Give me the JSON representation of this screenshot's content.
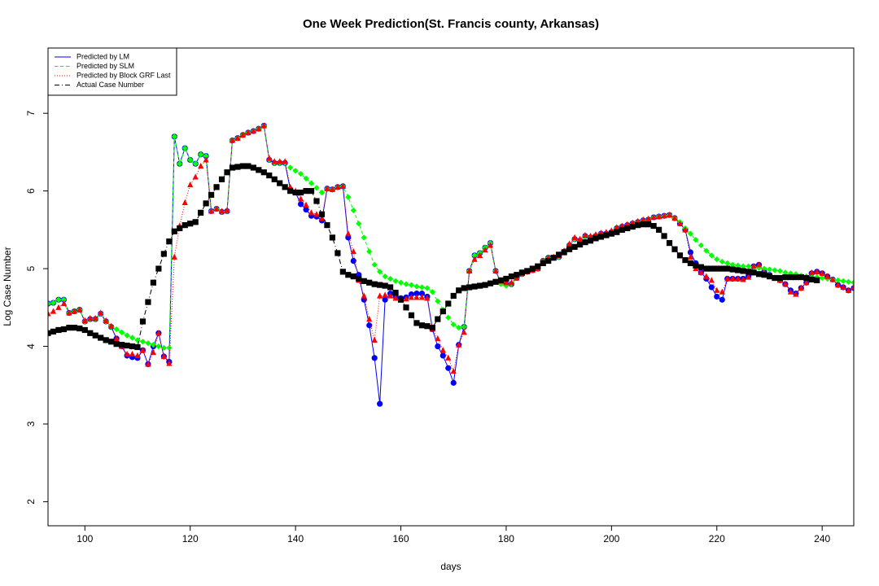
{
  "chart_data": {
    "type": "line",
    "title": "One Week Prediction(St. Francis county, Arkansas)",
    "x_label": "days",
    "y_label": "Log Case Number",
    "xlim": [
      93,
      246
    ],
    "ylim": [
      1.69,
      7.84
    ],
    "xticks": [
      100,
      120,
      140,
      160,
      180,
      200,
      220,
      240
    ],
    "yticks": [
      2,
      3,
      4,
      5,
      6,
      7
    ],
    "legend": "upper left",
    "x": [
      93,
      94,
      95,
      96,
      97,
      98,
      99,
      100,
      101,
      102,
      103,
      104,
      105,
      106,
      107,
      108,
      109,
      110,
      111,
      112,
      113,
      114,
      115,
      116,
      117,
      118,
      119,
      120,
      121,
      122,
      123,
      124,
      125,
      126,
      127,
      128,
      129,
      130,
      131,
      132,
      133,
      134,
      135,
      136,
      137,
      138,
      139,
      140,
      141,
      142,
      143,
      144,
      145,
      146,
      147,
      148,
      149,
      150,
      151,
      152,
      153,
      154,
      155,
      156,
      157,
      158,
      159,
      160,
      161,
      162,
      163,
      164,
      165,
      166,
      167,
      168,
      169,
      170,
      171,
      172,
      173,
      174,
      175,
      176,
      177,
      178,
      179,
      180,
      181,
      182,
      183,
      184,
      185,
      186,
      187,
      188,
      189,
      190,
      191,
      192,
      193,
      194,
      195,
      196,
      197,
      198,
      199,
      200,
      201,
      202,
      203,
      204,
      205,
      206,
      207,
      208,
      209,
      210,
      211,
      212,
      213,
      214,
      215,
      216,
      217,
      218,
      219,
      220,
      221,
      222,
      223,
      224,
      225,
      226,
      227,
      228,
      229,
      230,
      231,
      232,
      233,
      234,
      235,
      236,
      237,
      238,
      239,
      240,
      241,
      242,
      243,
      244,
      245,
      246
    ],
    "series": [
      {
        "name": "Predicted by LM",
        "color": "#0000ff",
        "line_style": "solid",
        "marker": "circle",
        "values": [
          4.55,
          4.56,
          4.6,
          4.6,
          4.43,
          4.45,
          4.47,
          4.32,
          4.35,
          4.35,
          4.42,
          4.32,
          4.25,
          4.1,
          4.0,
          3.88,
          3.86,
          3.85,
          3.95,
          3.77,
          4.0,
          4.17,
          3.87,
          3.8,
          6.7,
          6.35,
          6.55,
          6.4,
          6.35,
          6.47,
          6.45,
          5.74,
          5.77,
          5.73,
          5.74,
          6.65,
          6.68,
          6.72,
          6.75,
          6.77,
          6.8,
          6.84,
          6.4,
          6.36,
          6.36,
          6.36,
          6.02,
          5.98,
          5.83,
          5.76,
          5.68,
          5.67,
          5.62,
          6.03,
          6.02,
          6.05,
          6.06,
          5.4,
          5.1,
          4.92,
          4.6,
          4.27,
          3.85,
          3.26,
          4.6,
          4.68,
          4.64,
          4.62,
          4.63,
          4.67,
          4.68,
          4.68,
          4.64,
          4.22,
          4.0,
          3.88,
          3.72,
          3.53,
          4.02,
          4.25,
          4.97,
          5.17,
          5.2,
          5.27,
          5.33,
          4.97,
          4.82,
          4.8,
          4.8,
          4.88,
          4.93,
          4.96,
          4.98,
          5.0,
          5.1,
          5.14,
          5.14,
          5.15,
          5.22,
          5.3,
          5.38,
          5.36,
          5.42,
          5.4,
          5.42,
          5.45,
          5.45,
          5.47,
          5.52,
          5.54,
          5.56,
          5.58,
          5.6,
          5.62,
          5.63,
          5.66,
          5.67,
          5.68,
          5.69,
          5.65,
          5.58,
          5.5,
          5.21,
          5.07,
          4.95,
          4.87,
          4.76,
          4.64,
          4.6,
          4.87,
          4.87,
          4.87,
          4.87,
          4.9,
          5.03,
          5.05,
          4.96,
          4.92,
          4.88,
          4.85,
          4.8,
          4.72,
          4.68,
          4.75,
          4.82,
          4.94,
          4.96,
          4.94,
          4.9,
          4.86,
          4.79,
          4.76,
          4.72,
          4.75
        ]
      },
      {
        "name": "Predicted by SLM",
        "color": "#00ff00",
        "line_style": "dashed",
        "marker": "diamond",
        "values": [
          4.55,
          4.56,
          4.6,
          4.6,
          4.43,
          4.45,
          4.47,
          4.32,
          4.35,
          4.35,
          4.42,
          4.32,
          4.25,
          4.22,
          4.18,
          4.14,
          4.11,
          4.08,
          4.06,
          4.04,
          4.02,
          4.0,
          3.98,
          3.98,
          6.7,
          6.35,
          6.55,
          6.4,
          6.35,
          6.47,
          6.45,
          5.74,
          5.77,
          5.73,
          5.74,
          6.65,
          6.68,
          6.72,
          6.75,
          6.77,
          6.8,
          6.84,
          6.4,
          6.36,
          6.36,
          6.36,
          6.3,
          6.26,
          6.22,
          6.16,
          6.1,
          6.04,
          5.98,
          6.03,
          6.02,
          6.05,
          6.06,
          5.92,
          5.75,
          5.58,
          5.4,
          5.22,
          5.05,
          4.96,
          4.9,
          4.87,
          4.84,
          4.82,
          4.8,
          4.79,
          4.77,
          4.76,
          4.75,
          4.7,
          4.58,
          4.47,
          4.37,
          4.28,
          4.24,
          4.25,
          4.97,
          5.17,
          5.2,
          5.27,
          5.33,
          4.97,
          4.8,
          4.78,
          4.8,
          4.88,
          4.93,
          4.96,
          4.98,
          5.0,
          5.1,
          5.14,
          5.14,
          5.15,
          5.22,
          5.3,
          5.38,
          5.36,
          5.42,
          5.4,
          5.42,
          5.45,
          5.45,
          5.47,
          5.52,
          5.54,
          5.56,
          5.58,
          5.6,
          5.62,
          5.63,
          5.66,
          5.67,
          5.68,
          5.69,
          5.65,
          5.6,
          5.52,
          5.45,
          5.37,
          5.3,
          5.23,
          5.17,
          5.12,
          5.09,
          5.07,
          5.05,
          5.04,
          5.03,
          5.03,
          5.02,
          5.01,
          5.0,
          4.99,
          4.98,
          4.97,
          4.95,
          4.94,
          4.93,
          4.91,
          4.9,
          4.89,
          4.89,
          4.88,
          4.87,
          4.86,
          4.85,
          4.84,
          4.83,
          4.82
        ]
      },
      {
        "name": "Predicted by Block GRF Last",
        "color": "#ff0000",
        "line_style": "dotted",
        "marker": "triangle",
        "values": [
          4.42,
          4.45,
          4.5,
          4.55,
          4.43,
          4.45,
          4.47,
          4.33,
          4.36,
          4.36,
          4.43,
          4.33,
          4.26,
          4.1,
          4.0,
          3.9,
          3.9,
          3.88,
          3.95,
          3.77,
          3.92,
          4.17,
          3.87,
          3.78,
          5.15,
          5.55,
          5.85,
          6.08,
          6.18,
          6.32,
          6.4,
          5.74,
          5.77,
          5.74,
          5.75,
          6.65,
          6.68,
          6.72,
          6.75,
          6.77,
          6.8,
          6.84,
          6.42,
          6.38,
          6.38,
          6.38,
          6.05,
          6.0,
          5.9,
          5.82,
          5.72,
          5.7,
          5.65,
          6.03,
          6.02,
          6.05,
          6.06,
          5.45,
          5.22,
          4.85,
          4.65,
          4.35,
          4.08,
          4.65,
          4.66,
          4.65,
          4.62,
          4.6,
          4.61,
          4.63,
          4.63,
          4.63,
          4.62,
          4.22,
          4.1,
          3.95,
          3.85,
          3.68,
          4.02,
          4.18,
          4.97,
          5.12,
          5.17,
          5.24,
          5.3,
          4.97,
          4.84,
          4.82,
          4.82,
          4.88,
          4.94,
          4.96,
          4.98,
          5.0,
          5.1,
          5.14,
          5.15,
          5.17,
          5.23,
          5.32,
          5.4,
          5.38,
          5.43,
          5.42,
          5.44,
          5.46,
          5.47,
          5.49,
          5.53,
          5.55,
          5.57,
          5.59,
          5.61,
          5.63,
          5.64,
          5.66,
          5.67,
          5.68,
          5.69,
          5.65,
          5.58,
          5.5,
          5.15,
          5.0,
          4.95,
          4.9,
          4.85,
          4.72,
          4.7,
          4.87,
          4.87,
          4.87,
          4.86,
          4.89,
          5.03,
          5.05,
          4.95,
          4.92,
          4.88,
          4.85,
          4.8,
          4.7,
          4.67,
          4.75,
          4.82,
          4.95,
          4.96,
          4.94,
          4.9,
          4.86,
          4.79,
          4.76,
          4.72,
          4.76
        ]
      },
      {
        "name": "Actual Case Number",
        "color": "#000000",
        "line_style": "dashdot",
        "marker": "square",
        "values": [
          4.17,
          4.19,
          4.21,
          4.22,
          4.24,
          4.24,
          4.23,
          4.21,
          4.17,
          4.14,
          4.11,
          4.08,
          4.06,
          4.03,
          4.02,
          4.01,
          4.0,
          3.99,
          4.32,
          4.57,
          4.82,
          5.0,
          5.19,
          5.35,
          5.48,
          5.52,
          5.56,
          5.58,
          5.6,
          5.72,
          5.84,
          5.95,
          6.05,
          6.15,
          6.24,
          6.3,
          6.31,
          6.32,
          6.32,
          6.3,
          6.27,
          6.24,
          6.2,
          6.15,
          6.1,
          6.05,
          6.0,
          5.98,
          5.98,
          6.0,
          6.0,
          5.87,
          5.7,
          5.56,
          5.4,
          5.2,
          4.96,
          4.92,
          4.9,
          4.87,
          4.84,
          4.82,
          4.8,
          4.79,
          4.78,
          4.76,
          4.69,
          4.6,
          4.5,
          4.4,
          4.3,
          4.27,
          4.26,
          4.24,
          4.35,
          4.45,
          4.55,
          4.65,
          4.72,
          4.75,
          4.76,
          4.77,
          4.78,
          4.79,
          4.81,
          4.83,
          4.85,
          4.87,
          4.9,
          4.92,
          4.95,
          4.97,
          5.0,
          5.03,
          5.07,
          5.1,
          5.14,
          5.18,
          5.21,
          5.25,
          5.28,
          5.31,
          5.34,
          5.36,
          5.39,
          5.41,
          5.43,
          5.45,
          5.47,
          5.5,
          5.52,
          5.54,
          5.56,
          5.57,
          5.57,
          5.55,
          5.5,
          5.42,
          5.33,
          5.25,
          5.17,
          5.11,
          5.07,
          5.04,
          5.02,
          5.0,
          5.0,
          5.0,
          5.0,
          5.0,
          4.99,
          4.98,
          4.97,
          4.96,
          4.95,
          4.93,
          4.92,
          4.9,
          4.88,
          4.88,
          4.89,
          4.89,
          4.89,
          4.89,
          4.88,
          4.86,
          4.85,
          null,
          null,
          null,
          null,
          null,
          null,
          null
        ]
      }
    ]
  }
}
